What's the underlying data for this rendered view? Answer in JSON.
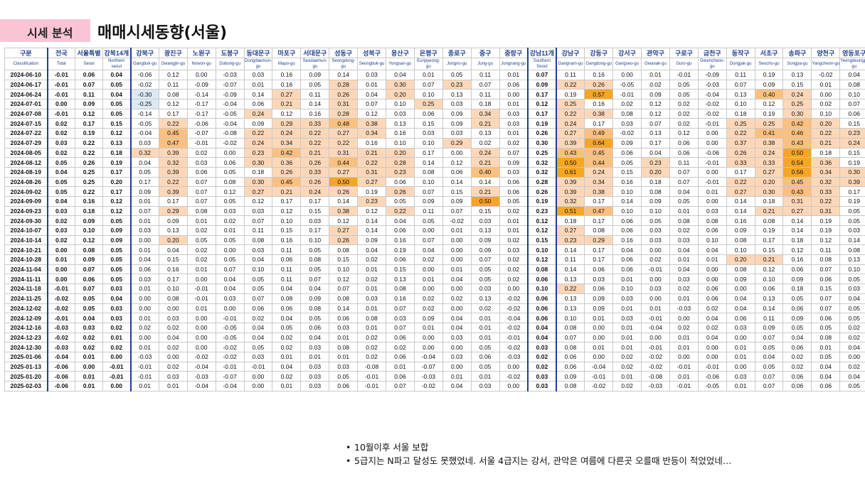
{
  "header": {
    "tag": "시세 분석",
    "title": "매매시세동향(서울)"
  },
  "table": {
    "columns_ko": [
      "구분",
      "전국",
      "서울특별",
      "강북14개",
      "강북구",
      "광진구",
      "노원구",
      "도봉구",
      "동대문구",
      "마포구",
      "서대문구",
      "성동구",
      "성북구",
      "용산구",
      "은평구",
      "종로구",
      "중구",
      "중랑구",
      "강남11개",
      "강남구",
      "강동구",
      "강서구",
      "관악구",
      "구로구",
      "금천구",
      "동작구",
      "서초구",
      "송파구",
      "양천구",
      "영등포구"
    ],
    "columns_en": [
      "Classification",
      "Total",
      "Seoul",
      "Northern seoul",
      "Gangbuk-gu",
      "Gwangjin-gu",
      "Nowon-gu",
      "Dobong-gu",
      "Dongdaemun-gu",
      "Mapo-gu",
      "Seodaemun-gu",
      "Seongdong-gu",
      "Seongbuk-gu",
      "Yongsan-gu",
      "Eunpyeong-gu",
      "Jongno-gu",
      "Jung-gu",
      "Jungnang-gu",
      "Southern Seoul",
      "Gangnam-gu",
      "Gangdong-gu",
      "Gangseo-gu",
      "Gwanak-gu",
      "Guro-gu",
      "Geumcheon-gu",
      "Dongjak-gu",
      "Seocho-gu",
      "Songpa-gu",
      "Yangcheon-gu",
      "Yeongdeungpo-gu"
    ],
    "rows": [
      [
        "2024-06-10",
        "-0.01",
        "0.06",
        "0.04",
        "-0.06",
        "0.12",
        "0.00",
        "-0.03",
        "0.03",
        "0.16",
        "0.09",
        "0.14",
        "0.03",
        "0.04",
        "0.01",
        "0.05",
        "0.11",
        "0.01",
        "0.07",
        "0.11",
        "0.16",
        "0.00",
        "0.01",
        "-0.01",
        "-0.09",
        "0.11",
        "0.19",
        "0.13",
        "-0.02",
        "0.04"
      ],
      [
        "2024-06-17",
        "-0.01",
        "0.07",
        "0.05",
        "-0.02",
        "0.11",
        "-0.09",
        "-0.07",
        "0.01",
        "0.16",
        "0.05",
        "0.28",
        "0.01",
        "0.30",
        "0.07",
        "0.23",
        "0.07",
        "0.06",
        "0.09",
        "0.22",
        "0.26",
        "-0.05",
        "0.02",
        "0.05",
        "-0.03",
        "0.07",
        "0.09",
        "0.15",
        "0.01",
        "0.08"
      ],
      [
        "2024-06-24",
        "-0.01",
        "0.11",
        "0.04",
        "-0.30",
        "0.08",
        "-0.14",
        "-0.09",
        "0.14",
        "0.27",
        "0.11",
        "0.26",
        "0.04",
        "0.20",
        "0.10",
        "0.13",
        "0.11",
        "0.00",
        "0.17",
        "0.19",
        "0.57",
        "-0.01",
        "0.09",
        "0.05",
        "-0.04",
        "0.13",
        "0.40",
        "0.24",
        "0.00",
        "0.10"
      ],
      [
        "2024-07-01",
        "0.00",
        "0.09",
        "0.05",
        "-0.25",
        "0.12",
        "-0.17",
        "-0.04",
        "0.06",
        "0.21",
        "0.14",
        "0.31",
        "0.07",
        "0.10",
        "0.25",
        "0.03",
        "0.18",
        "0.01",
        "0.12",
        "0.25",
        "0.16",
        "0.02",
        "0.12",
        "0.02",
        "-0.02",
        "0.10",
        "0.12",
        "0.25",
        "0.02",
        "0.07"
      ],
      [
        "2024-07-08",
        "-0.01",
        "0.12",
        "0.05",
        "-0.14",
        "0.17",
        "-0.17",
        "-0.05",
        "0.24",
        "0.12",
        "0.16",
        "0.28",
        "0.12",
        "0.03",
        "0.06",
        "0.09",
        "0.34",
        "0.03",
        "0.17",
        "0.22",
        "0.38",
        "0.08",
        "0.12",
        "0.02",
        "-0.02",
        "0.18",
        "0.19",
        "0.30",
        "0.10",
        "0.06"
      ],
      [
        "2024-07-15",
        "0.02",
        "0.17",
        "0.15",
        "-0.05",
        "0.22",
        "-0.06",
        "-0.04",
        "0.09",
        "0.29",
        "0.33",
        "0.48",
        "0.38",
        "0.13",
        "0.15",
        "0.09",
        "0.21",
        "0.03",
        "0.19",
        "0.24",
        "0.17",
        "0.03",
        "0.07",
        "0.02",
        "-0.01",
        "0.25",
        "0.25",
        "0.42",
        "0.20",
        "0.15"
      ],
      [
        "2024-07-22",
        "0.02",
        "0.19",
        "0.12",
        "-0.04",
        "0.45",
        "-0.07",
        "-0.08",
        "0.22",
        "0.24",
        "0.22",
        "0.27",
        "0.34",
        "0.16",
        "0.03",
        "0.03",
        "0.13",
        "0.01",
        "0.26",
        "0.27",
        "0.49",
        "-0.02",
        "0.13",
        "0.12",
        "0.00",
        "0.22",
        "0.41",
        "0.46",
        "0.22",
        "0.23"
      ],
      [
        "2024-07-29",
        "0.03",
        "0.22",
        "0.13",
        "0.03",
        "0.47",
        "-0.01",
        "-0.02",
        "0.24",
        "0.34",
        "0.22",
        "0.22",
        "0.16",
        "0.10",
        "0.10",
        "0.29",
        "0.02",
        "0.02",
        "0.30",
        "0.39",
        "0.64",
        "0.09",
        "0.17",
        "0.06",
        "0.00",
        "0.37",
        "0.38",
        "0.43",
        "0.21",
        "0.24"
      ],
      [
        "2024-08-05",
        "0.02",
        "0.22",
        "0.18",
        "0.32",
        "0.39",
        "0.02",
        "0.00",
        "0.23",
        "0.42",
        "0.21",
        "0.31",
        "0.21",
        "0.20",
        "0.17",
        "0.00",
        "0.24",
        "0.07",
        "0.25",
        "0.43",
        "0.45",
        "0.06",
        "0.04",
        "0.06",
        "-0.06",
        "0.26",
        "0.24",
        "0.50",
        "0.18",
        "0.15"
      ],
      [
        "2024-08-12",
        "0.05",
        "0.26",
        "0.19",
        "0.04",
        "0.32",
        "0.03",
        "0.06",
        "0.30",
        "0.36",
        "0.26",
        "0.44",
        "0.22",
        "0.28",
        "0.14",
        "0.12",
        "0.21",
        "0.09",
        "0.32",
        "0.50",
        "0.44",
        "0.05",
        "0.23",
        "0.11",
        "-0.01",
        "0.33",
        "0.33",
        "0.54",
        "0.36",
        "0.19"
      ],
      [
        "2024-08-19",
        "0.04",
        "0.25",
        "0.17",
        "0.05",
        "0.39",
        "0.06",
        "0.05",
        "0.18",
        "0.26",
        "0.33",
        "0.27",
        "0.31",
        "0.23",
        "0.08",
        "0.06",
        "0.40",
        "0.03",
        "0.32",
        "0.61",
        "0.24",
        "0.15",
        "0.20",
        "0.07",
        "0.00",
        "0.17",
        "0.27",
        "0.56",
        "0.34",
        "0.30"
      ],
      [
        "2024-08-26",
        "0.05",
        "0.25",
        "0.20",
        "0.17",
        "0.22",
        "0.07",
        "0.08",
        "0.30",
        "0.45",
        "0.26",
        "0.50",
        "0.27",
        "0.06",
        "0.10",
        "0.14",
        "0.14",
        "0.06",
        "0.28",
        "0.39",
        "0.34",
        "0.16",
        "0.18",
        "0.07",
        "-0.01",
        "0.22",
        "0.20",
        "0.45",
        "0.32",
        "0.39"
      ],
      [
        "2024-09-02",
        "0.05",
        "0.22",
        "0.17",
        "0.09",
        "0.39",
        "0.07",
        "0.12",
        "0.27",
        "0.21",
        "0.24",
        "0.26",
        "0.19",
        "0.26",
        "0.07",
        "0.15",
        "0.21",
        "0.06",
        "0.26",
        "0.39",
        "0.38",
        "0.10",
        "0.08",
        "0.04",
        "0.01",
        "0.27",
        "0.30",
        "0.43",
        "0.33",
        "0.17"
      ],
      [
        "2024-09-09",
        "0.04",
        "0.16",
        "0.12",
        "0.01",
        "0.17",
        "0.07",
        "0.05",
        "0.12",
        "0.17",
        "0.17",
        "0.14",
        "0.23",
        "0.05",
        "0.09",
        "0.09",
        "0.50",
        "0.05",
        "0.19",
        "0.32",
        "0.17",
        "0.14",
        "0.09",
        "0.05",
        "0.00",
        "0.14",
        "0.18",
        "0.31",
        "0.22",
        "0.19"
      ],
      [
        "2024-09-23",
        "0.03",
        "0.18",
        "0.12",
        "0.07",
        "0.29",
        "0.08",
        "0.03",
        "0.03",
        "0.12",
        "0.15",
        "0.38",
        "0.12",
        "0.22",
        "0.11",
        "0.07",
        "0.15",
        "0.02",
        "0.23",
        "0.51",
        "0.47",
        "0.10",
        "0.10",
        "0.01",
        "0.03",
        "0.14",
        "0.21",
        "0.27",
        "0.31",
        "0.05"
      ],
      [
        "2024-09-30",
        "0.02",
        "0.09",
        "0.05",
        "0.01",
        "0.09",
        "0.01",
        "0.02",
        "0.07",
        "0.10",
        "0.03",
        "0.12",
        "0.14",
        "0.04",
        "0.05",
        "-0.02",
        "0.03",
        "0.01",
        "0.12",
        "0.18",
        "0.17",
        "0.06",
        "0.05",
        "0.08",
        "0.08",
        "0.16",
        "0.08",
        "0.14",
        "0.19",
        "0.05"
      ],
      [
        "2024-10-07",
        "0.03",
        "0.10",
        "0.09",
        "0.03",
        "0.13",
        "0.02",
        "0.01",
        "0.11",
        "0.15",
        "0.17",
        "0.27",
        "0.14",
        "0.06",
        "0.00",
        "0.01",
        "0.13",
        "0.01",
        "0.12",
        "0.27",
        "0.08",
        "0.06",
        "0.03",
        "0.02",
        "0.06",
        "0.09",
        "0.19",
        "0.14",
        "0.19",
        "0.03"
      ],
      [
        "2024-10-14",
        "0.02",
        "0.12",
        "0.09",
        "0.00",
        "0.20",
        "0.05",
        "0.05",
        "0.08",
        "0.16",
        "0.10",
        "0.26",
        "0.09",
        "0.16",
        "0.07",
        "0.00",
        "0.09",
        "0.02",
        "0.15",
        "0.23",
        "0.29",
        "0.16",
        "0.03",
        "0.03",
        "0.10",
        "0.08",
        "0.17",
        "0.18",
        "0.12",
        "0.14"
      ],
      [
        "2024-10-21",
        "0.00",
        "0.08",
        "0.05",
        "0.01",
        "0.04",
        "0.02",
        "0.00",
        "0.03",
        "0.11",
        "0.05",
        "0.08",
        "0.04",
        "0.19",
        "0.04",
        "0.00",
        "0.09",
        "0.03",
        "0.10",
        "0.14",
        "0.17",
        "0.04",
        "0.00",
        "0.04",
        "0.04",
        "0.10",
        "0.15",
        "0.12",
        "0.11",
        "0.08"
      ],
      [
        "2024-10-28",
        "0.01",
        "0.09",
        "0.05",
        "0.04",
        "0.15",
        "0.02",
        "0.05",
        "0.04",
        "0.06",
        "0.08",
        "0.15",
        "0.02",
        "0.06",
        "0.02",
        "0.00",
        "0.07",
        "0.02",
        "0.12",
        "0.11",
        "0.17",
        "0.06",
        "0.02",
        "0.01",
        "0.01",
        "0.20",
        "0.21",
        "0.16",
        "0.08",
        "0.13"
      ],
      [
        "2024-11-04",
        "0.00",
        "0.07",
        "0.05",
        "0.06",
        "0.16",
        "0.01",
        "0.07",
        "0.10",
        "0.11",
        "0.05",
        "0.10",
        "0.01",
        "0.15",
        "0.00",
        "0.01",
        "0.05",
        "0.02",
        "0.08",
        "0.14",
        "0.06",
        "0.06",
        "-0.01",
        "0.04",
        "0.00",
        "0.08",
        "0.12",
        "0.06",
        "0.07",
        "0.10"
      ],
      [
        "2024-11-11",
        "0.00",
        "0.06",
        "0.05",
        "0.03",
        "0.17",
        "0.00",
        "0.04",
        "0.05",
        "0.11",
        "0.07",
        "0.12",
        "0.02",
        "0.13",
        "0.01",
        "0.04",
        "0.05",
        "0.02",
        "0.06",
        "0.13",
        "0.03",
        "0.01",
        "0.00",
        "0.03",
        "0.00",
        "0.09",
        "0.10",
        "0.09",
        "0.06",
        "0.05"
      ],
      [
        "2024-11-18",
        "-0.01",
        "0.07",
        "0.03",
        "0.01",
        "0.10",
        "-0.01",
        "0.04",
        "0.05",
        "0.04",
        "0.04",
        "0.07",
        "0.01",
        "0.08",
        "0.00",
        "0.00",
        "0.03",
        "0.00",
        "0.10",
        "0.22",
        "0.06",
        "0.10",
        "0.03",
        "0.02",
        "0.06",
        "0.00",
        "0.06",
        "0.18",
        "0.15",
        "0.03"
      ],
      [
        "2024-11-25",
        "-0.02",
        "0.05",
        "0.04",
        "0.00",
        "0.08",
        "-0.01",
        "0.03",
        "0.07",
        "0.08",
        "0.09",
        "0.08",
        "0.03",
        "0.16",
        "0.02",
        "0.02",
        "0.13",
        "-0.02",
        "0.06",
        "0.13",
        "0.09",
        "0.03",
        "0.00",
        "0.01",
        "0.06",
        "0.04",
        "0.13",
        "0.05",
        "0.07",
        "0.04"
      ],
      [
        "2024-12-02",
        "-0.02",
        "0.05",
        "0.03",
        "0.00",
        "0.00",
        "0.01",
        "0.00",
        "0.06",
        "0.06",
        "0.08",
        "0.14",
        "0.01",
        "0.07",
        "0.02",
        "0.00",
        "0.02",
        "-0.02",
        "0.06",
        "0.13",
        "0.09",
        "0.01",
        "0.01",
        "-0.03",
        "0.02",
        "0.04",
        "0.14",
        "0.06",
        "0.07",
        "0.05"
      ],
      [
        "2024-12-09",
        "-0.01",
        "0.04",
        "0.03",
        "0.01",
        "0.03",
        "0.00",
        "-0.01",
        "0.02",
        "0.04",
        "0.05",
        "0.06",
        "0.08",
        "0.03",
        "0.09",
        "0.04",
        "0.01",
        "-0.04",
        "0.06",
        "0.10",
        "0.01",
        "0.03",
        "-0.01",
        "0.00",
        "0.04",
        "0.06",
        "0.11",
        "0.09",
        "0.06",
        "0.05"
      ],
      [
        "2024-12-16",
        "-0.03",
        "0.03",
        "0.02",
        "0.02",
        "0.02",
        "0.00",
        "-0.05",
        "0.04",
        "0.05",
        "0.06",
        "0.03",
        "0.01",
        "0.07",
        "0.01",
        "0.04",
        "0.01",
        "-0.02",
        "0.04",
        "0.08",
        "0.00",
        "0.01",
        "-0.04",
        "0.02",
        "0.02",
        "0.03",
        "0.09",
        "0.05",
        "0.05",
        "0.02"
      ],
      [
        "2024-12-23",
        "-0.02",
        "0.02",
        "0.01",
        "0.00",
        "0.04",
        "0.00",
        "-0.05",
        "0.04",
        "0.02",
        "0.04",
        "0.01",
        "0.02",
        "0.06",
        "0.00",
        "0.03",
        "0.01",
        "-0.01",
        "0.04",
        "0.07",
        "0.00",
        "0.01",
        "0.00",
        "0.01",
        "0.04",
        "0.00",
        "0.07",
        "0.04",
        "0.08",
        "0.02"
      ],
      [
        "2024-12-30",
        "-0.03",
        "0.02",
        "0.02",
        "0.01",
        "0.02",
        "0.00",
        "-0.02",
        "0.05",
        "0.02",
        "0.03",
        "0.08",
        "0.02",
        "0.02",
        "0.00",
        "0.00",
        "0.05",
        "-0.02",
        "0.03",
        "0.08",
        "0.01",
        "0.01",
        "-0.01",
        "0.01",
        "0.00",
        "0.01",
        "0.05",
        "0.06",
        "0.01",
        "0.04"
      ],
      [
        "2025-01-06",
        "-0.04",
        "0.01",
        "0.00",
        "-0.03",
        "0.00",
        "-0.02",
        "-0.02",
        "0.03",
        "0.01",
        "0.01",
        "0.01",
        "0.02",
        "0.06",
        "-0.04",
        "0.03",
        "0.06",
        "-0.03",
        "0.02",
        "0.06",
        "0.00",
        "0.02",
        "-0.02",
        "0.00",
        "0.00",
        "0.01",
        "0.04",
        "0.02",
        "0.05",
        "0.00"
      ],
      [
        "2025-01-13",
        "-0.06",
        "0.00",
        "-0.01",
        "-0.01",
        "0.02",
        "-0.04",
        "-0.01",
        "-0.01",
        "0.04",
        "0.03",
        "0.03",
        "-0.08",
        "0.01",
        "-0.07",
        "0.00",
        "0.05",
        "0.00",
        "0.02",
        "0.06",
        "-0.04",
        "0.02",
        "-0.02",
        "-0.01",
        "-0.01",
        "0.00",
        "0.05",
        "0.02",
        "0.04",
        "0.02"
      ],
      [
        "2025-01-20",
        "-0.06",
        "0.01",
        "-0.01",
        "-0.01",
        "0.03",
        "-0.03",
        "-0.07",
        "0.00",
        "0.02",
        "0.03",
        "0.05",
        "-0.01",
        "0.06",
        "-0.03",
        "0.01",
        "0.01",
        "-0.02",
        "0.03",
        "0.09",
        "-0.01",
        "0.01",
        "-0.08",
        "0.01",
        "-0.06",
        "0.03",
        "0.07",
        "0.06",
        "0.04",
        "0.04"
      ],
      [
        "2025-02-03",
        "-0.06",
        "0.01",
        "0.00",
        "0.01",
        "0.01",
        "-0.04",
        "-0.04",
        "0.00",
        "0.01",
        "0.03",
        "0.06",
        "-0.01",
        "0.07",
        "-0.02",
        "0.04",
        "0.03",
        "0.00",
        "0.03",
        "0.08",
        "-0.02",
        "0.02",
        "-0.03",
        "-0.01",
        "-0.05",
        "0.01",
        "0.07",
        "0.06",
        "0.06",
        "0.05"
      ]
    ]
  },
  "notes": [
    "10월이후 서울 보합",
    "5급지는 N파고 달성도 못했었네. 서울 4급지는 강서, 관악은 여름에 다른곳 오를때 반등이 적었었네…"
  ],
  "colors": {
    "tag_bg": "#f9c5d5",
    "heat_light": "#fdd7b8",
    "heat_mid": "#fbc07e",
    "heat_strong": "#f5a623",
    "neg": "#dce9f5",
    "header_text": "#1f3f8f"
  }
}
